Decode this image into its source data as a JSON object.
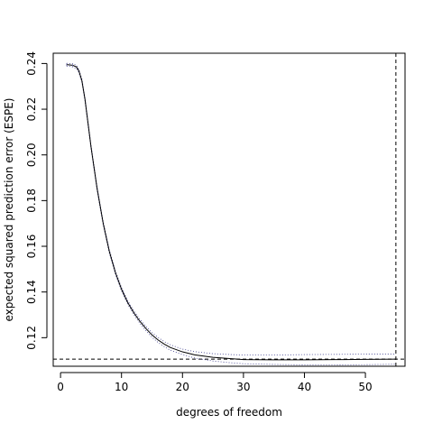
{
  "chart_data": {
    "type": "line",
    "title": "",
    "xlabel": "degrees of freedom",
    "ylabel": "expected squared prediction error (ESPE)",
    "xlim": [
      -1.2,
      56.5
    ],
    "ylim": [
      0.1075,
      0.2445
    ],
    "xticks": [
      0,
      10,
      20,
      30,
      40,
      50
    ],
    "yticks": [
      0.12,
      0.14,
      0.16,
      0.18,
      0.2,
      0.22,
      0.24
    ],
    "ytick_labels": [
      "0.12",
      "0.14",
      "0.16",
      "0.18",
      "0.20",
      "0.22",
      "0.24"
    ],
    "grid": false,
    "legend": "none",
    "series": [
      {
        "role": "estimate",
        "color": "#000000",
        "style": "solid",
        "x": [
          1,
          2,
          2.6,
          3,
          3.5,
          4,
          5,
          6,
          7,
          8,
          9,
          10,
          11,
          12,
          13,
          14,
          15,
          16,
          17,
          18,
          20,
          22,
          25,
          28,
          30,
          35,
          40,
          45,
          50,
          55
        ],
        "y": [
          0.2395,
          0.2392,
          0.2385,
          0.2368,
          0.2325,
          0.2245,
          0.2035,
          0.1852,
          0.17,
          0.1578,
          0.1485,
          0.1412,
          0.1355,
          0.131,
          0.1272,
          0.124,
          0.1212,
          0.119,
          0.1172,
          0.1157,
          0.1138,
          0.1125,
          0.1114,
          0.1108,
          0.1104,
          0.1103,
          0.1103,
          0.1104,
          0.1105,
          0.1106
        ]
      },
      {
        "role": "upper band",
        "color": "#3a3a8c",
        "style": "dotted",
        "x": [
          1,
          2,
          2.6,
          3,
          3.5,
          4,
          5,
          6,
          7,
          8,
          9,
          10,
          11,
          12,
          13,
          14,
          15,
          16,
          17,
          18,
          20,
          22,
          25,
          28,
          30,
          35,
          40,
          45,
          50,
          55
        ],
        "y": [
          0.2401,
          0.2399,
          0.2392,
          0.2375,
          0.2332,
          0.2252,
          0.2042,
          0.1859,
          0.1707,
          0.1585,
          0.1492,
          0.1419,
          0.1363,
          0.1318,
          0.1281,
          0.1249,
          0.1222,
          0.1201,
          0.1183,
          0.1169,
          0.115,
          0.1139,
          0.113,
          0.1126,
          0.1124,
          0.1124,
          0.1126,
          0.1127,
          0.1128,
          0.1128
        ]
      },
      {
        "role": "lower band",
        "color": "#3a3a8c",
        "style": "dotted",
        "x": [
          1,
          2,
          2.6,
          3,
          3.5,
          4,
          5,
          6,
          7,
          8,
          9,
          10,
          11,
          12,
          13,
          14,
          15,
          16,
          17,
          18,
          20,
          22,
          25,
          28,
          30,
          35,
          40,
          45,
          50,
          55
        ],
        "y": [
          0.2389,
          0.2385,
          0.2378,
          0.2361,
          0.2318,
          0.2238,
          0.2028,
          0.1845,
          0.1693,
          0.1571,
          0.1478,
          0.1405,
          0.1348,
          0.1302,
          0.1263,
          0.1231,
          0.1202,
          0.1179,
          0.1161,
          0.1145,
          0.1126,
          0.1111,
          0.1098,
          0.109,
          0.1086,
          0.1083,
          0.1081,
          0.1081,
          0.1082,
          0.1084
        ]
      }
    ],
    "reference_lines": [
      {
        "orientation": "horizontal",
        "value": 0.1106,
        "style": "dashed",
        "color": "#000000"
      },
      {
        "orientation": "vertical",
        "value": 55,
        "style": "dashed",
        "color": "#000000"
      }
    ]
  }
}
